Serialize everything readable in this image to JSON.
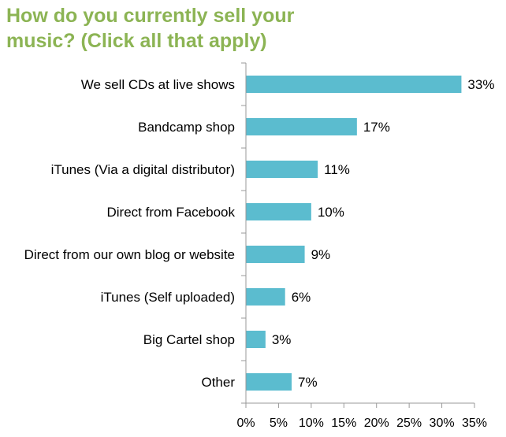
{
  "chart_data": {
    "type": "bar",
    "orientation": "horizontal",
    "title_lines": [
      "How do you currently sell your",
      "music? (Click all that apply)"
    ],
    "categories": [
      "We sell CDs at live shows",
      "Bandcamp shop",
      "iTunes (Via a digital distributor)",
      "Direct from Facebook",
      "Direct from our own blog or website",
      "iTunes (Self uploaded)",
      "Big Cartel shop",
      "Other"
    ],
    "values": [
      33,
      17,
      11,
      10,
      9,
      6,
      3,
      7
    ],
    "value_labels": [
      "33%",
      "17%",
      "11%",
      "10%",
      "9%",
      "6%",
      "3%",
      "7%"
    ],
    "xlim": [
      0,
      35
    ],
    "x_ticks": [
      0,
      5,
      10,
      15,
      20,
      25,
      30,
      35
    ],
    "x_tick_labels": [
      "0%",
      "5%",
      "10%",
      "15%",
      "20%",
      "25%",
      "30%",
      "35%"
    ],
    "bar_color": "#5bbccf",
    "title_color": "#8cb454",
    "grid": false,
    "legend": "none"
  }
}
